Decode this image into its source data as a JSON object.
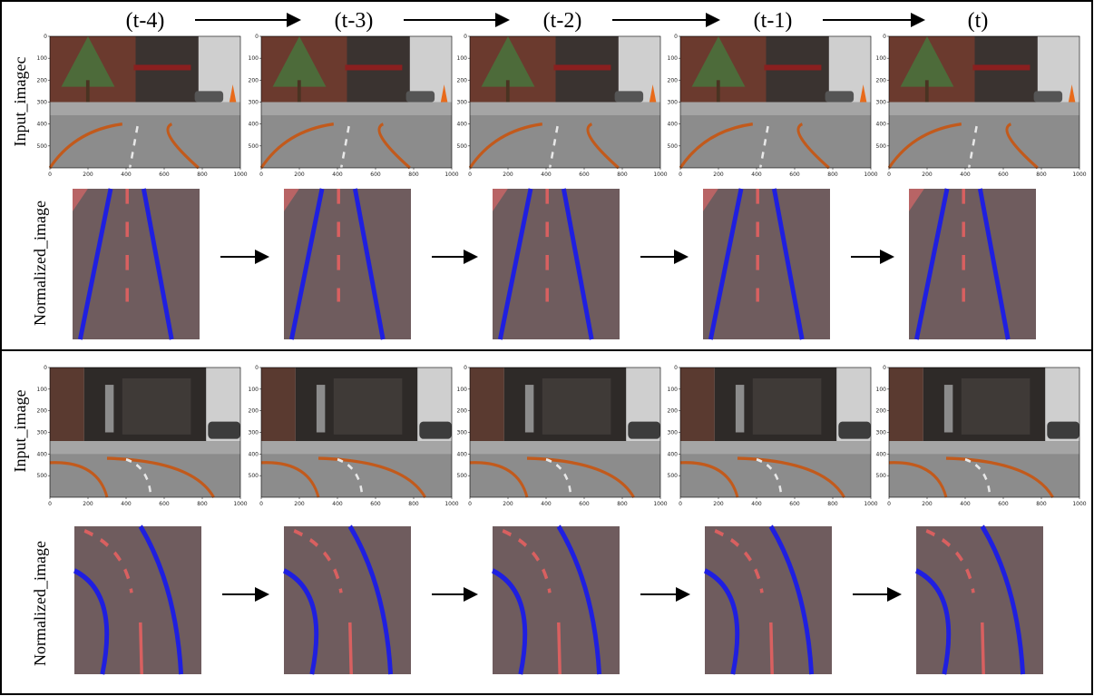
{
  "time_labels": [
    "(t-4)",
    "(t-3)",
    "(t-2)",
    "(t-1)",
    "(t)"
  ],
  "panels": [
    {
      "input_label": "Input_imagec",
      "normalized_label": "Normalized_image"
    },
    {
      "input_label": "Input_image",
      "normalized_label": "Normalized_image"
    }
  ],
  "axes": {
    "xticks": [
      0,
      200,
      400,
      600,
      800,
      1000
    ],
    "yticks": [
      0,
      100,
      200,
      300,
      400,
      500
    ]
  }
}
